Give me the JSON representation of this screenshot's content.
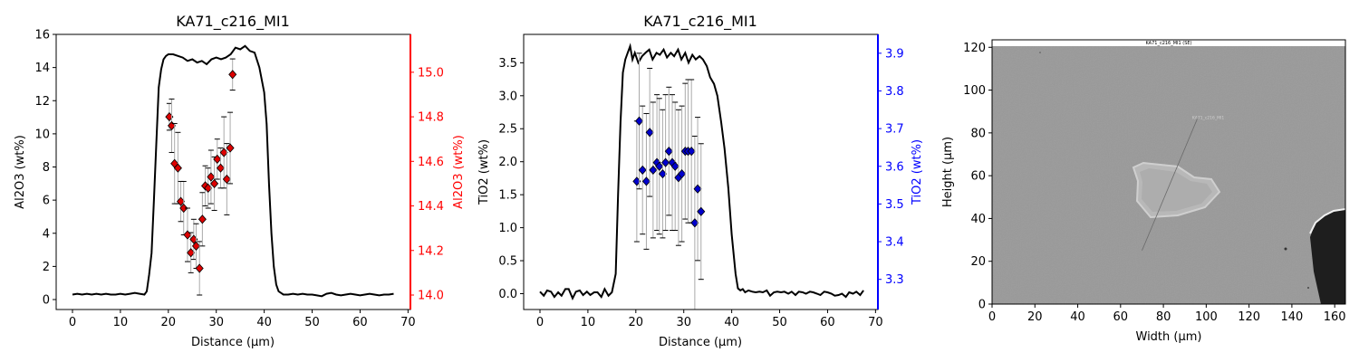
{
  "chart_data": [
    {
      "type": "line",
      "title": "KA71_c216_MI1",
      "xlabel": "Distance (µm)",
      "ylabel": "Al2O3 (wt%)",
      "y2label": "Al2O3 (wt%)",
      "xlim": [
        -3.4,
        70.5
      ],
      "ylim": [
        -0.6,
        16.0
      ],
      "y2lim": [
        13.935,
        15.17
      ],
      "xticks": [
        0,
        10,
        20,
        30,
        40,
        50,
        60,
        70
      ],
      "yticks": [
        0,
        2,
        4,
        6,
        8,
        10,
        12,
        14,
        16
      ],
      "y2ticks": [
        14.0,
        14.2,
        14.4,
        14.6,
        14.8,
        15.0
      ],
      "colors": {
        "profile": "#000000",
        "points": "#dd0000",
        "secondary_axis": "#ff0000",
        "errorbar": "#aaaaaa"
      },
      "profile": {
        "x": [
          0,
          1,
          2,
          3,
          4,
          5,
          6,
          7,
          8,
          9,
          10,
          11,
          12,
          13,
          14,
          15,
          15.5,
          16,
          16.5,
          17,
          17.5,
          18,
          18.5,
          19,
          19.5,
          20,
          21,
          22,
          23,
          24,
          25,
          26,
          27,
          28,
          29,
          30,
          31,
          32,
          33,
          34,
          35,
          36,
          37,
          38,
          39,
          40,
          40.5,
          41,
          41.5,
          42,
          42.5,
          43,
          44,
          45,
          46,
          47,
          48,
          49,
          50,
          51,
          52,
          53,
          54,
          55,
          56,
          57,
          58,
          59,
          60,
          61,
          62,
          63,
          64,
          65,
          66,
          67
        ],
        "y": [
          0.3,
          0.35,
          0.3,
          0.35,
          0.3,
          0.35,
          0.3,
          0.35,
          0.3,
          0.3,
          0.35,
          0.3,
          0.35,
          0.4,
          0.35,
          0.3,
          0.5,
          1.5,
          2.8,
          6.0,
          9.5,
          12.8,
          13.9,
          14.5,
          14.7,
          14.8,
          14.8,
          14.7,
          14.6,
          14.4,
          14.5,
          14.3,
          14.4,
          14.2,
          14.5,
          14.6,
          14.5,
          14.6,
          14.8,
          15.2,
          15.1,
          15.3,
          15.0,
          14.9,
          14.0,
          12.5,
          10.6,
          7.0,
          4.0,
          2.0,
          0.9,
          0.5,
          0.3,
          0.3,
          0.35,
          0.3,
          0.35,
          0.3,
          0.3,
          0.25,
          0.2,
          0.35,
          0.4,
          0.3,
          0.25,
          0.3,
          0.35,
          0.3,
          0.25,
          0.3,
          0.35,
          0.3,
          0.25,
          0.3,
          0.3,
          0.35
        ]
      },
      "points": {
        "x": [
          20.2,
          20.7,
          21.3,
          22.0,
          22.6,
          23.2,
          24.0,
          24.7,
          25.3,
          25.8,
          26.5,
          27.1,
          27.7,
          28.3,
          28.9,
          29.6,
          30.2,
          30.9,
          31.6,
          32.2,
          32.9,
          33.4
        ],
        "y": [
          14.8,
          14.76,
          14.59,
          14.57,
          14.42,
          14.39,
          14.27,
          14.19,
          14.25,
          14.22,
          14.12,
          14.34,
          14.49,
          14.48,
          14.53,
          14.5,
          14.61,
          14.57,
          14.64,
          14.52,
          14.66,
          14.99
        ],
        "err": [
          0.06,
          0.12,
          0.18,
          0.16,
          0.09,
          0.12,
          0.12,
          0.09,
          0.09,
          0.1,
          0.12,
          0.12,
          0.09,
          0.09,
          0.12,
          0.12,
          0.09,
          0.09,
          0.16,
          0.16,
          0.16,
          0.07
        ]
      }
    },
    {
      "type": "line",
      "title": "KA71_c216_MI1",
      "xlabel": "Distance (µm)",
      "ylabel": "TiO2 (wt%)",
      "y2label": "TiO2 (wt%)",
      "xlim": [
        -3.4,
        70.5
      ],
      "ylim": [
        -0.24,
        3.93
      ],
      "y2lim": [
        3.22,
        3.95
      ],
      "xticks": [
        0,
        10,
        20,
        30,
        40,
        50,
        60,
        70
      ],
      "yticks": [
        0.0,
        0.5,
        1.0,
        1.5,
        2.0,
        2.5,
        3.0,
        3.5
      ],
      "y2ticks": [
        3.3,
        3.4,
        3.5,
        3.6,
        3.7,
        3.8,
        3.9
      ],
      "colors": {
        "profile": "#000000",
        "points": "#0000cc",
        "secondary_axis": "#0000ff",
        "errorbar": "#aaaaaa"
      },
      "profile": {
        "x": [
          0,
          0.8,
          1.5,
          2.3,
          3,
          3.8,
          4.5,
          5.3,
          6,
          6.8,
          7.5,
          8.3,
          9,
          9.8,
          10.5,
          11.3,
          12,
          12.8,
          13.5,
          14.3,
          15,
          15.8,
          16.3,
          16.8,
          17.3,
          17.8,
          18.3,
          18.8,
          19.3,
          19.8,
          20.5,
          21.3,
          22,
          22.8,
          23.5,
          24.3,
          25,
          25.8,
          26.5,
          27.3,
          28,
          28.8,
          29.5,
          30.3,
          31,
          31.8,
          32.5,
          33.3,
          34,
          34.8,
          35.5,
          36.3,
          37,
          37.8,
          38.5,
          39.3,
          40,
          40.8,
          41.3,
          41.8,
          42.3,
          42.8,
          43.5,
          44.3,
          45,
          45.8,
          46.5,
          47.3,
          48,
          48.8,
          49.5,
          50.3,
          51,
          51.8,
          52.5,
          53.3,
          54,
          54.8,
          55.5,
          56.3,
          57,
          57.8,
          58.5,
          59.3,
          60,
          60.8,
          61.5,
          62.3,
          63,
          63.8,
          64.5,
          65.3,
          66,
          66.8,
          67.5
        ],
        "y": [
          0.03,
          -0.03,
          0.05,
          0.03,
          -0.05,
          0.02,
          -0.03,
          0.07,
          0.07,
          -0.07,
          0.03,
          0.05,
          -0.02,
          0.03,
          -0.02,
          0.02,
          0.02,
          -0.05,
          0.07,
          -0.03,
          0.02,
          0.3,
          1.5,
          2.6,
          3.35,
          3.55,
          3.65,
          3.75,
          3.55,
          3.65,
          3.5,
          3.6,
          3.65,
          3.7,
          3.55,
          3.65,
          3.62,
          3.7,
          3.58,
          3.65,
          3.6,
          3.7,
          3.55,
          3.65,
          3.5,
          3.62,
          3.55,
          3.6,
          3.55,
          3.45,
          3.28,
          3.18,
          3.0,
          2.6,
          2.2,
          1.6,
          0.9,
          0.3,
          0.08,
          0.05,
          0.07,
          0.02,
          0.05,
          0.03,
          0.02,
          0.03,
          0.02,
          0.05,
          -0.03,
          0.02,
          0.03,
          0.02,
          0.03,
          0.0,
          0.03,
          -0.02,
          0.03,
          0.02,
          0.0,
          0.03,
          0.02,
          0.0,
          -0.02,
          0.03,
          0.02,
          0.0,
          -0.03,
          -0.02,
          0.0,
          -0.05,
          0.02,
          0.0,
          0.03,
          -0.02,
          0.05
        ]
      },
      "points": {
        "x": [
          20.2,
          20.7,
          21.4,
          22.2,
          22.9,
          23.6,
          24.4,
          24.9,
          25.6,
          26.2,
          26.9,
          27.6,
          28.2,
          28.9,
          29.6,
          30.3,
          30.9,
          31.6,
          32.3,
          32.9,
          33.6
        ],
        "y": [
          3.56,
          3.72,
          3.59,
          3.56,
          3.69,
          3.59,
          3.61,
          3.6,
          3.58,
          3.61,
          3.64,
          3.61,
          3.6,
          3.57,
          3.58,
          3.64,
          3.64,
          3.64,
          3.45,
          3.54,
          3.48
        ],
        "err": [
          0.16,
          0.18,
          0.17,
          0.18,
          0.17,
          0.18,
          0.18,
          0.18,
          0.17,
          0.18,
          0.17,
          0.18,
          0.17,
          0.18,
          0.18,
          0.18,
          0.19,
          0.19,
          0.23,
          0.19,
          0.18
        ]
      }
    },
    {
      "type": "image",
      "title": "",
      "xlabel": "Width (µm)",
      "ylabel": "Height (µm)",
      "xlim": [
        0,
        165
      ],
      "ylim": [
        0,
        123.5
      ],
      "xticks": [
        0,
        20,
        40,
        60,
        80,
        100,
        120,
        140,
        160
      ],
      "yticks": [
        0,
        20,
        40,
        60,
        80,
        100,
        120
      ],
      "image_caption": "KA71_c216_MI1 (SE)",
      "image_label": "KA71_c216_MI1",
      "traverse": {
        "x": [
          70,
          96
        ],
        "y": [
          25,
          87
        ]
      }
    }
  ]
}
